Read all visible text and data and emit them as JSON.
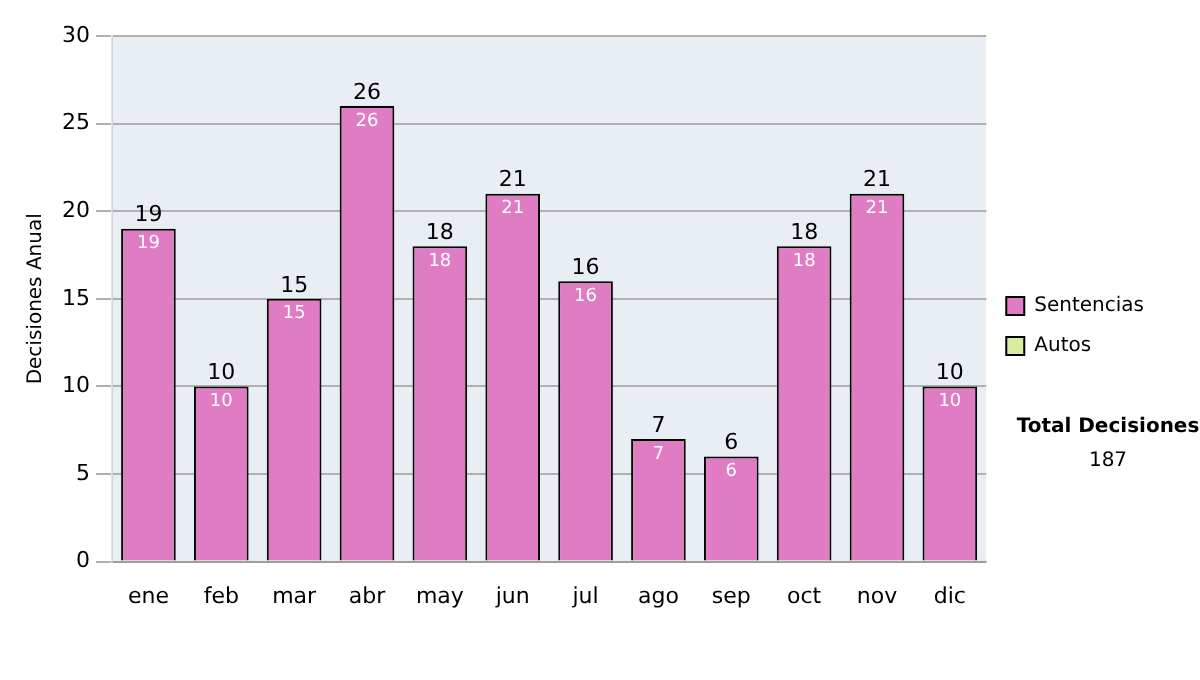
{
  "chart_data": {
    "type": "bar",
    "ylabel": "Decisiones Anual",
    "categories": [
      "ene",
      "feb",
      "mar",
      "abr",
      "may",
      "jun",
      "jul",
      "ago",
      "sep",
      "oct",
      "nov",
      "dic"
    ],
    "series": [
      {
        "name": "Sentencias",
        "color": "#e07cc4",
        "values": [
          19,
          10,
          15,
          26,
          18,
          21,
          16,
          7,
          6,
          18,
          21,
          10
        ],
        "value_labels": [
          "19",
          "10",
          "15",
          "26",
          "18",
          "21",
          "16",
          "7",
          "6",
          "18",
          "21",
          "10"
        ]
      },
      {
        "name": "Autos",
        "color": "#d8eca0",
        "values": [
          0,
          0,
          0,
          0,
          0,
          0,
          0,
          0,
          0,
          0,
          0,
          0
        ]
      }
    ],
    "stacked": true,
    "totals": [
      "19",
      "10",
      "15",
      "26",
      "18",
      "21",
      "16",
      "7",
      "6",
      "18",
      "21",
      "10"
    ],
    "ylim": [
      0,
      30
    ],
    "yticks": [
      0,
      5,
      10,
      15,
      20,
      25,
      30
    ],
    "grid": "y",
    "legend": "right",
    "annotations": [
      "Total Decisiones",
      "187"
    ]
  }
}
